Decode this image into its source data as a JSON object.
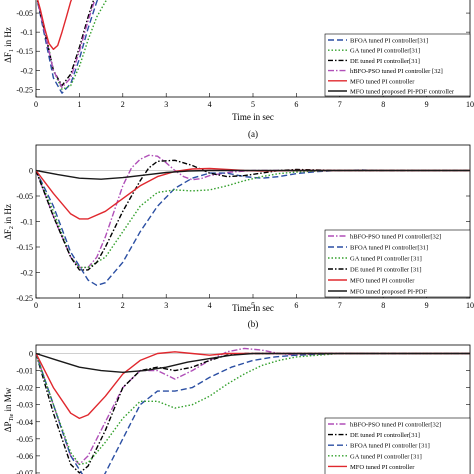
{
  "chart_data": [
    {
      "type": "line",
      "panel_label": "(a)",
      "title": "",
      "xlabel": "Time in sec",
      "ylabel": "ΔF1 in Hz",
      "ylabel_main": "ΔF",
      "ylabel_sub": "1",
      "ylabel_unit": " in Hz",
      "xlim": [
        0,
        10
      ],
      "ylim": [
        -0.27,
        0.0
      ],
      "xticks": [
        "0",
        "1",
        "2",
        "3",
        "4",
        "5",
        "6",
        "7",
        "8",
        "9",
        "10"
      ],
      "yticks": [
        {
          "value": -0.05,
          "label": "-0.05"
        },
        {
          "value": -0.1,
          "label": "-0.1"
        },
        {
          "value": -0.15,
          "label": "-0.15"
        },
        {
          "value": -0.2,
          "label": "-0.2"
        },
        {
          "value": -0.25,
          "label": "-0.25"
        }
      ],
      "legend_position": "bottom-right",
      "series": [
        {
          "name": "BFOA tuned PI controller[31]",
          "color": "#2b4fa3",
          "dash": "6,3",
          "x": [
            0,
            0.2,
            0.4,
            0.6,
            0.8,
            1.0,
            1.2,
            1.4,
            1.6
          ],
          "y": [
            0,
            -0.11,
            -0.22,
            -0.26,
            -0.235,
            -0.17,
            -0.09,
            -0.02,
            0.03
          ]
        },
        {
          "name": "GA tuned PI controller[31]",
          "color": "#33a02c",
          "dash": "1.5,2",
          "x": [
            0,
            0.2,
            0.4,
            0.6,
            0.8,
            1.0,
            1.2,
            1.4,
            1.6,
            1.8,
            2.0,
            2.2,
            2.4,
            2.6,
            2.8,
            3.0,
            3.2,
            3.4
          ],
          "y": [
            0,
            -0.09,
            -0.2,
            -0.25,
            -0.24,
            -0.19,
            -0.12,
            -0.06,
            -0.02,
            0.0,
            0.006,
            0.006,
            0.004,
            -0.002,
            -0.003,
            -0.001,
            0.004,
            0.01
          ]
        },
        {
          "name": "DE tuned PI controller[31]",
          "color": "#000000",
          "dash": "5,2,1.5,2",
          "x": [
            0,
            0.2,
            0.4,
            0.6,
            0.8,
            1.0,
            1.2,
            1.4,
            1.6
          ],
          "y": [
            0,
            -0.1,
            -0.2,
            -0.24,
            -0.21,
            -0.14,
            -0.06,
            0.01,
            0.04
          ]
        },
        {
          "name": "hBFO-PSO tuned PI controller [32]",
          "color": "#b04fb8",
          "dash": "6,2,1.5,2",
          "x": [
            0,
            0.2,
            0.4,
            0.6,
            0.8,
            1.0,
            1.2,
            1.4,
            1.6
          ],
          "y": [
            0,
            -0.1,
            -0.2,
            -0.245,
            -0.22,
            -0.15,
            -0.07,
            0.0,
            0.03
          ]
        },
        {
          "name": "MFO tuned PI controller",
          "color": "#e0282e",
          "dash": "",
          "x": [
            0,
            0.1,
            0.2,
            0.3,
            0.4,
            0.5,
            0.6,
            0.7,
            0.8,
            0.9,
            1.0
          ],
          "y": [
            0,
            -0.04,
            -0.09,
            -0.13,
            -0.145,
            -0.135,
            -0.1,
            -0.06,
            -0.02,
            0.01,
            0.03
          ]
        },
        {
          "name": "MFO tuned proposed PI-PDF controller",
          "color": "#1a1a1a",
          "dash": "",
          "x": [],
          "y": []
        }
      ]
    },
    {
      "type": "line",
      "panel_label": "(b)",
      "title": "",
      "xlabel": "Time in sec",
      "ylabel": "ΔF2 in Hz",
      "ylabel_main": "ΔF",
      "ylabel_sub": "2",
      "ylabel_unit": " in Hz",
      "xlim": [
        0,
        10
      ],
      "ylim": [
        -0.25,
        0.05
      ],
      "xticks": [
        "0",
        "1",
        "2",
        "3",
        "4",
        "5",
        "6",
        "7",
        "8",
        "9",
        "10"
      ],
      "yticks": [
        {
          "value": 0.0,
          "label": "0"
        },
        {
          "value": -0.05,
          "label": "-0.05"
        },
        {
          "value": -0.1,
          "label": "-0.1"
        },
        {
          "value": -0.15,
          "label": "-0.15"
        },
        {
          "value": -0.2,
          "label": "-0.2"
        },
        {
          "value": -0.25,
          "label": "-0.25"
        }
      ],
      "legend_position": "bottom-right",
      "series": [
        {
          "name": "hBFO-PSO tuned PI controller[32]",
          "color": "#b04fb8",
          "dash": "6,2,1.5,2",
          "x": [
            0,
            0.4,
            0.8,
            1.0,
            1.2,
            1.4,
            1.6,
            1.8,
            2.0,
            2.2,
            2.4,
            2.6,
            2.8,
            3.0,
            3.2,
            3.4,
            3.6,
            3.8,
            4.0,
            4.5,
            5.0,
            6.0,
            7.0,
            10.0
          ],
          "y": [
            0,
            -0.09,
            -0.17,
            -0.19,
            -0.19,
            -0.17,
            -0.13,
            -0.08,
            -0.03,
            0.005,
            0.022,
            0.03,
            0.028,
            0.015,
            0.0,
            -0.012,
            -0.018,
            -0.016,
            -0.01,
            -0.003,
            0.0,
            0.0,
            0.0,
            0.0
          ]
        },
        {
          "name": "BFOA tuned PI controller[31]",
          "color": "#2b4fa3",
          "dash": "6,3",
          "x": [
            0,
            0.4,
            0.8,
            1.2,
            1.4,
            1.6,
            2.0,
            2.4,
            2.8,
            3.2,
            3.6,
            4.0,
            4.4,
            4.8,
            5.2,
            5.6,
            6.0,
            6.5,
            7.0,
            7.5,
            8.0,
            9.0,
            10.0
          ],
          "y": [
            0,
            -0.07,
            -0.16,
            -0.215,
            -0.225,
            -0.22,
            -0.18,
            -0.12,
            -0.07,
            -0.035,
            -0.015,
            -0.005,
            -0.005,
            -0.012,
            -0.015,
            -0.012,
            -0.006,
            -0.002,
            0.0,
            0.001,
            0.0,
            0.0,
            0.0
          ]
        },
        {
          "name": "GA tuned PI controller [31]",
          "color": "#33a02c",
          "dash": "1.5,2",
          "x": [
            0,
            0.4,
            0.8,
            1.0,
            1.2,
            1.6,
            2.0,
            2.4,
            2.8,
            3.2,
            3.6,
            4.0,
            4.4,
            4.8,
            5.2,
            5.6,
            6.0,
            6.5,
            7.0,
            8.0,
            9.0,
            10.0
          ],
          "y": [
            0,
            -0.08,
            -0.17,
            -0.19,
            -0.19,
            -0.17,
            -0.12,
            -0.07,
            -0.043,
            -0.038,
            -0.04,
            -0.038,
            -0.03,
            -0.02,
            -0.012,
            -0.006,
            -0.003,
            -0.001,
            0.0,
            0.0,
            0.0,
            0.0
          ]
        },
        {
          "name": "DE tuned PI controller [31]",
          "color": "#000000",
          "dash": "5,2,1.5,2",
          "x": [
            0,
            0.4,
            0.8,
            1.0,
            1.2,
            1.4,
            1.6,
            2.0,
            2.4,
            2.6,
            2.8,
            3.2,
            3.6,
            4.0,
            4.4,
            4.8,
            5.2,
            5.6,
            6.0,
            7.0,
            10.0
          ],
          "y": [
            0,
            -0.09,
            -0.17,
            -0.195,
            -0.195,
            -0.18,
            -0.15,
            -0.08,
            -0.02,
            0.005,
            0.018,
            0.02,
            0.01,
            -0.005,
            -0.012,
            -0.01,
            -0.005,
            0.0,
            0.002,
            0.0,
            0.0
          ]
        },
        {
          "name": "MFO tuned PI controller",
          "color": "#e0282e",
          "dash": "",
          "x": [
            0,
            0.4,
            0.8,
            1.0,
            1.2,
            1.6,
            2.0,
            2.4,
            2.8,
            3.2,
            3.6,
            4.0,
            4.4,
            4.8,
            5.2,
            6.0,
            7.0,
            10.0
          ],
          "y": [
            0,
            -0.045,
            -0.085,
            -0.095,
            -0.095,
            -0.08,
            -0.055,
            -0.03,
            -0.012,
            -0.002,
            0.003,
            0.004,
            0.002,
            0.0,
            -0.001,
            0.0,
            0.0,
            0.0
          ]
        },
        {
          "name": "MFO tuned proposed PI-PDF",
          "color": "#1a1a1a",
          "dash": "",
          "x": [
            0,
            0.5,
            1.0,
            1.5,
            2.0,
            2.5,
            3.0,
            3.5,
            4.0,
            5.0,
            6.0,
            10.0
          ],
          "y": [
            0,
            -0.008,
            -0.015,
            -0.017,
            -0.014,
            -0.009,
            -0.004,
            -0.001,
            0.0,
            0.0,
            0.0,
            0.0
          ]
        }
      ]
    },
    {
      "type": "line",
      "panel_label": "",
      "title": "",
      "xlabel": "",
      "ylabel": "ΔPTie in Mw",
      "ylabel_main": "ΔP",
      "ylabel_sub": "Tie",
      "ylabel_unit": " in Mw",
      "xlim": [
        0,
        10
      ],
      "ylim": [
        -0.08,
        0.005
      ],
      "xticks": [],
      "yticks": [
        {
          "value": 0.0,
          "label": "0"
        },
        {
          "value": -0.01,
          "label": "-0.01"
        },
        {
          "value": -0.02,
          "label": "-0.02"
        },
        {
          "value": -0.03,
          "label": "-0.03"
        },
        {
          "value": -0.04,
          "label": "-0.04"
        },
        {
          "value": -0.05,
          "label": "-0.05"
        },
        {
          "value": -0.06,
          "label": "-0.06"
        },
        {
          "value": -0.07,
          "label": "-0.07"
        }
      ],
      "legend_position": "bottom-right",
      "series": [
        {
          "name": "hBFO-PSO tuned PI controller[32]",
          "color": "#b04fb8",
          "dash": "6,2,1.5,2",
          "x": [
            0,
            0.4,
            0.8,
            1.0,
            1.2,
            1.6,
            2.0,
            2.4,
            2.8,
            3.2,
            3.6,
            4.0,
            4.4,
            4.8,
            5.2,
            5.6,
            6.0,
            6.5,
            7.0,
            8.0,
            10.0
          ],
          "y": [
            0,
            -0.03,
            -0.06,
            -0.065,
            -0.06,
            -0.04,
            -0.02,
            -0.01,
            -0.01,
            -0.015,
            -0.01,
            -0.004,
            0.001,
            0.003,
            0.002,
            0.0,
            -0.001,
            0.0,
            0.0,
            0.0,
            0.0
          ]
        },
        {
          "name": "DE tuned PI controller[31]",
          "color": "#000000",
          "dash": "5,2,1.5,2",
          "x": [
            0,
            0.4,
            0.8,
            1.0,
            1.2,
            1.6,
            2.0,
            2.4,
            2.8,
            3.2,
            3.6,
            4.0,
            4.4,
            4.8,
            5.2,
            6.0,
            7.0,
            10.0
          ],
          "y": [
            0,
            -0.035,
            -0.065,
            -0.07,
            -0.066,
            -0.045,
            -0.02,
            -0.01,
            -0.008,
            -0.01,
            -0.008,
            -0.004,
            -0.001,
            0.0,
            0.0,
            0.0,
            0.0,
            0.0
          ]
        },
        {
          "name": "BFOA tuned PI controller [31]",
          "color": "#2b4fa3",
          "dash": "6,3",
          "x": [
            0,
            0.4,
            0.8,
            1.2,
            1.4,
            1.6,
            2.0,
            2.4,
            2.8,
            3.2,
            3.6,
            4.0,
            4.5,
            5.0,
            5.5,
            6.0,
            7.0,
            8.0,
            10.0
          ],
          "y": [
            0,
            -0.03,
            -0.06,
            -0.076,
            -0.078,
            -0.07,
            -0.05,
            -0.03,
            -0.022,
            -0.022,
            -0.02,
            -0.014,
            -0.008,
            -0.004,
            -0.002,
            -0.001,
            0.0,
            0.0,
            0.0
          ]
        },
        {
          "name": "GA tuned PI controller [31]",
          "color": "#33a02c",
          "dash": "1.5,2",
          "x": [
            0,
            0.4,
            0.8,
            1.0,
            1.2,
            1.6,
            2.0,
            2.4,
            2.8,
            3.2,
            3.6,
            4.0,
            4.4,
            4.8,
            5.2,
            5.6,
            6.0,
            6.5,
            7.0,
            8.0,
            10.0
          ],
          "y": [
            0,
            -0.03,
            -0.058,
            -0.065,
            -0.064,
            -0.052,
            -0.038,
            -0.028,
            -0.028,
            -0.032,
            -0.03,
            -0.025,
            -0.018,
            -0.012,
            -0.007,
            -0.004,
            -0.002,
            -0.001,
            0.0,
            0.0,
            0.0
          ]
        },
        {
          "name": "MFO tuned PI controller",
          "color": "#e0282e",
          "dash": "",
          "x": [
            0,
            0.4,
            0.8,
            1.0,
            1.2,
            1.6,
            2.0,
            2.4,
            2.8,
            3.2,
            3.6,
            4.0,
            4.4,
            5.0,
            6.0,
            10.0
          ],
          "y": [
            0,
            -0.02,
            -0.035,
            -0.038,
            -0.036,
            -0.025,
            -0.012,
            -0.004,
            0.0,
            0.001,
            0.0,
            -0.001,
            0.0,
            0.0,
            0.0,
            0.0
          ]
        },
        {
          "name": "",
          "color": "#1a1a1a",
          "dash": "",
          "x": [
            0,
            0.5,
            1.0,
            1.5,
            2.0,
            2.5,
            3.0,
            3.5,
            4.0,
            4.5,
            5.0,
            6.0,
            10.0
          ],
          "y": [
            0,
            -0.004,
            -0.008,
            -0.01,
            -0.011,
            -0.01,
            -0.008,
            -0.005,
            -0.003,
            -0.001,
            0.0,
            0.0,
            0.0
          ]
        }
      ]
    }
  ]
}
